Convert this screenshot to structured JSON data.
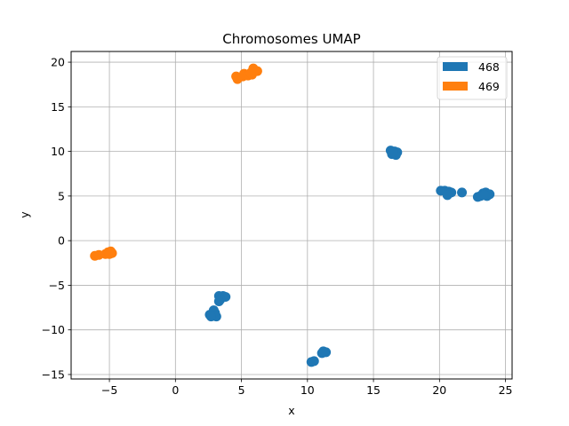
{
  "chart_data": {
    "type": "scatter",
    "title": "Chromosomes UMAP",
    "xlabel": "x",
    "ylabel": "y",
    "xlim": [
      -7.9,
      25.5
    ],
    "ylim": [
      -15.5,
      21.2
    ],
    "xticks": [
      -5,
      0,
      5,
      10,
      15,
      20,
      25
    ],
    "yticks": [
      -15,
      -10,
      -5,
      0,
      5,
      10,
      15,
      20
    ],
    "tick_labels_x": [
      "−5",
      "0",
      "5",
      "10",
      "15",
      "20",
      "25"
    ],
    "tick_labels_y": [
      "−15",
      "−10",
      "−5",
      "0",
      "5",
      "10",
      "15",
      "20"
    ],
    "grid": true,
    "legend_position": "top-right",
    "series": [
      {
        "name": "468",
        "color": "#1f77b4",
        "points": [
          [
            16.3,
            10.1
          ],
          [
            16.6,
            10.0
          ],
          [
            16.8,
            9.9
          ],
          [
            16.4,
            9.7
          ],
          [
            16.7,
            9.6
          ],
          [
            16.5,
            9.9
          ],
          [
            20.1,
            5.6
          ],
          [
            20.4,
            5.6
          ],
          [
            20.7,
            5.5
          ],
          [
            20.9,
            5.4
          ],
          [
            20.6,
            5.1
          ],
          [
            21.7,
            5.4
          ],
          [
            22.9,
            4.9
          ],
          [
            23.1,
            5.0
          ],
          [
            23.3,
            5.3
          ],
          [
            23.5,
            5.4
          ],
          [
            23.8,
            5.2
          ],
          [
            23.6,
            5.0
          ],
          [
            23.4,
            5.1
          ],
          [
            3.3,
            -6.2
          ],
          [
            3.6,
            -6.2
          ],
          [
            3.8,
            -6.3
          ],
          [
            3.4,
            -6.6
          ],
          [
            3.3,
            -6.8
          ],
          [
            2.6,
            -8.3
          ],
          [
            2.9,
            -8.4
          ],
          [
            3.0,
            -8.1
          ],
          [
            2.9,
            -7.8
          ],
          [
            3.1,
            -8.5
          ],
          [
            2.7,
            -8.5
          ],
          [
            11.1,
            -12.6
          ],
          [
            11.4,
            -12.5
          ],
          [
            11.2,
            -12.4
          ],
          [
            10.3,
            -13.6
          ],
          [
            10.5,
            -13.5
          ]
        ]
      },
      {
        "name": "469",
        "color": "#ff7f0e",
        "points": [
          [
            4.6,
            18.4
          ],
          [
            4.7,
            18.1
          ],
          [
            5.1,
            18.4
          ],
          [
            5.2,
            18.7
          ],
          [
            5.5,
            18.5
          ],
          [
            5.8,
            18.6
          ],
          [
            6.0,
            19.1
          ],
          [
            5.9,
            19.3
          ],
          [
            6.2,
            19.0
          ],
          [
            5.7,
            18.8
          ],
          [
            -6.1,
            -1.7
          ],
          [
            -5.8,
            -1.6
          ],
          [
            -5.3,
            -1.5
          ],
          [
            -5.1,
            -1.3
          ],
          [
            -4.9,
            -1.2
          ],
          [
            -4.8,
            -1.4
          ],
          [
            -5.0,
            -1.5
          ]
        ]
      }
    ]
  }
}
